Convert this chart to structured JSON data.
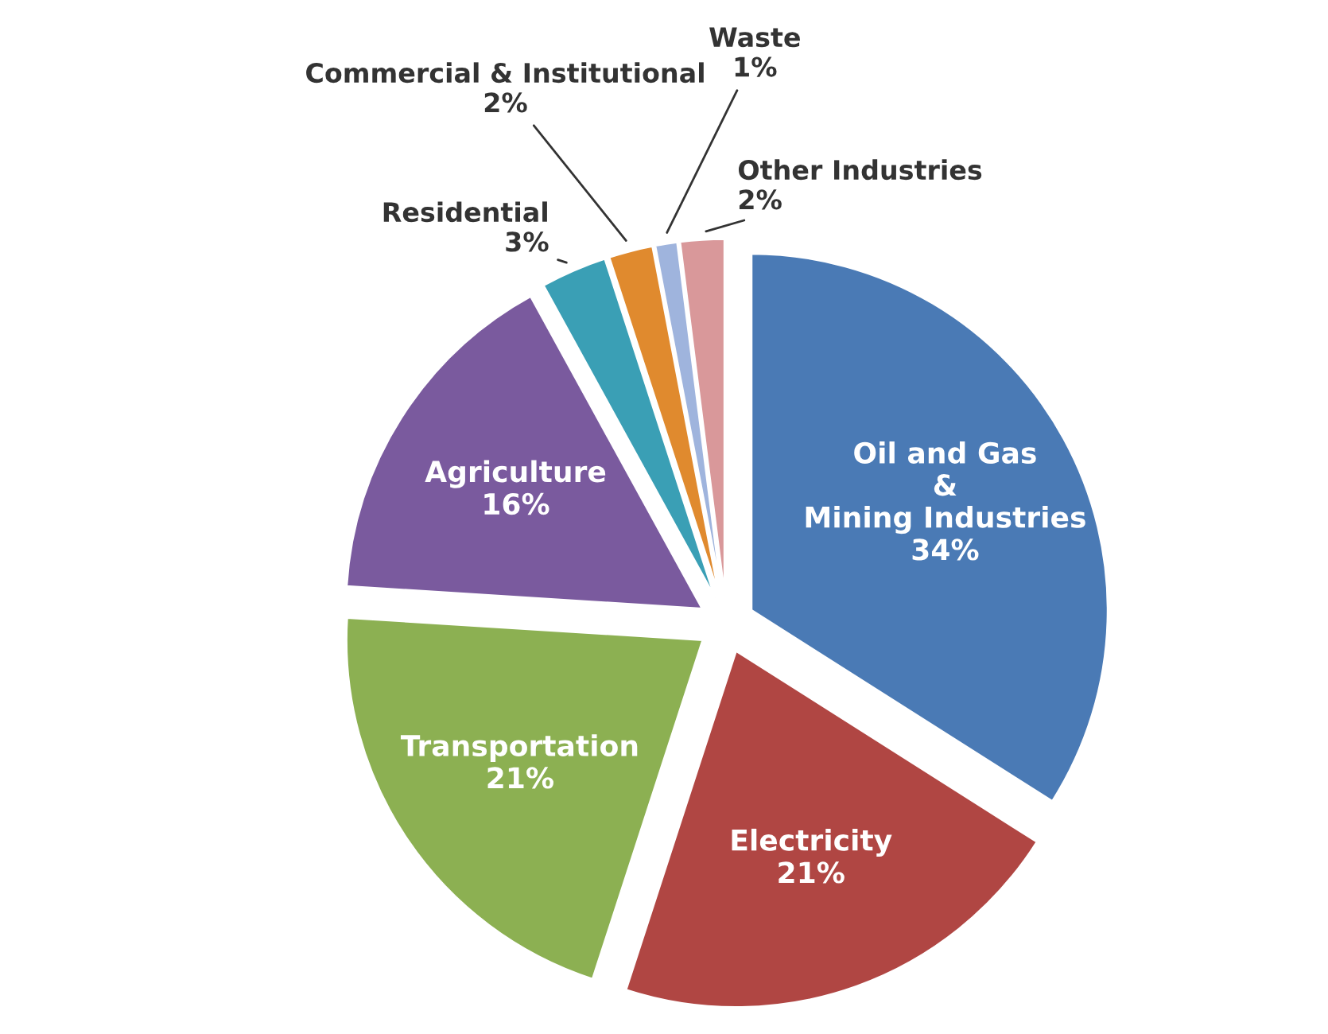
{
  "chart_data": {
    "type": "pie",
    "categories": [
      "Oil and Gas\n&\nMining Industries",
      "Electricity",
      "Transportation",
      "Agriculture",
      "Residential",
      "Commercial & Institutional",
      "Waste",
      "Other Industries"
    ],
    "values": [
      34,
      21,
      21,
      16,
      3,
      2,
      1,
      2
    ],
    "value_labels": [
      "34%",
      "21%",
      "21%",
      "16%",
      "3%",
      "2%",
      "1%",
      "2%"
    ],
    "colors": [
      "#4a7ab5",
      "#b04643",
      "#8cb052",
      "#7a5a9e",
      "#3a9fb5",
      "#e08a2e",
      "#9fb4dd",
      "#d9989a"
    ]
  }
}
